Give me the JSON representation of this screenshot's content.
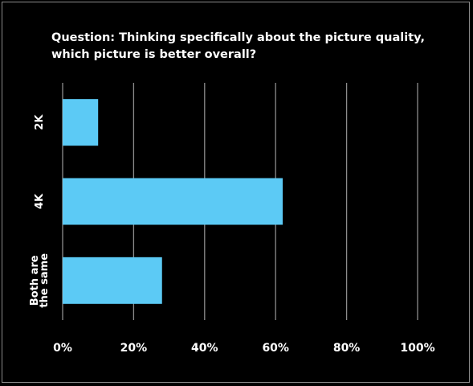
{
  "chart_data": {
    "type": "bar",
    "orientation": "horizontal",
    "title": "Question: Thinking specifically about the picture quality, which picture is better overall?",
    "categories": [
      [
        "2K"
      ],
      [
        "4K"
      ],
      [
        "Both are",
        "the same"
      ]
    ],
    "values": [
      10,
      62,
      28
    ],
    "xlim": [
      0,
      100
    ],
    "xticks": [
      "0%",
      "20%",
      "40%",
      "60%",
      "80%",
      "100%"
    ],
    "grid": true,
    "colors": {
      "background": "#000000",
      "bar": "#5ccaf5",
      "grid": "#8c8c8c",
      "text": "#ffffff"
    }
  }
}
